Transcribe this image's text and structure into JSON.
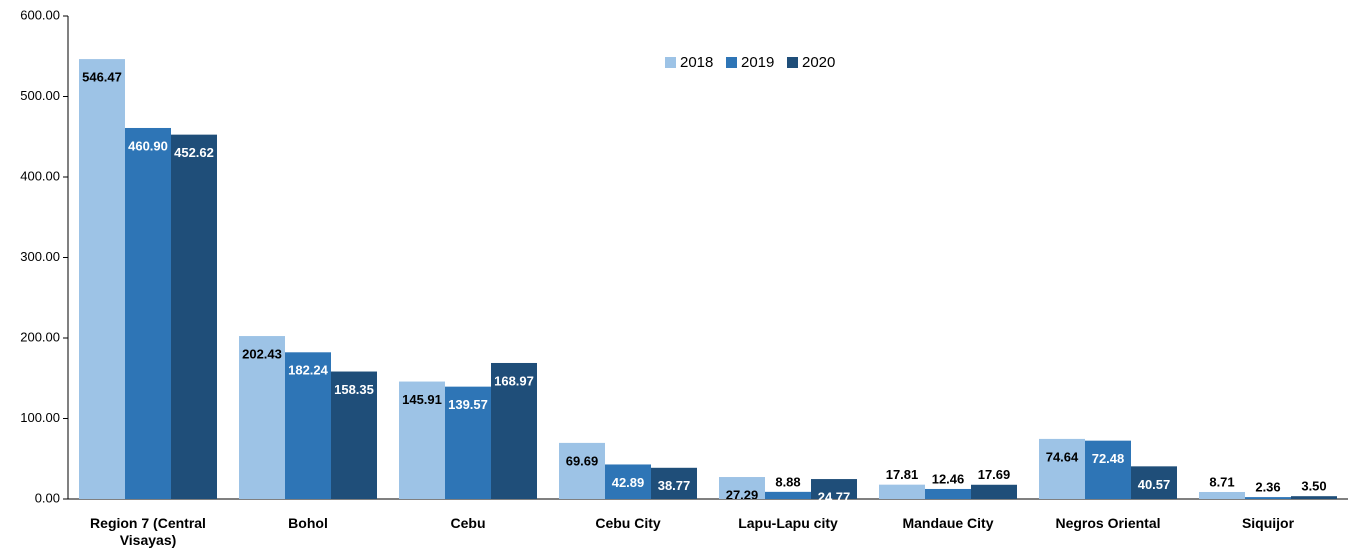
{
  "chart_data": {
    "type": "bar",
    "categories": [
      "Region 7 (Central Visayas)",
      "Bohol",
      "Cebu",
      "Cebu City",
      "Lapu-Lapu city",
      "Mandaue City",
      "Negros Oriental",
      "Siquijor"
    ],
    "series": [
      {
        "name": "2018",
        "color": "#9dc3e6",
        "values": [
          546.47,
          202.43,
          145.91,
          69.69,
          27.29,
          17.81,
          74.64,
          8.71
        ],
        "value_labels": [
          "546.47",
          "202.43",
          "145.91",
          "69.69",
          "27.29",
          "17.81",
          "74.64",
          "8.71"
        ]
      },
      {
        "name": "2019",
        "color": "#2e75b6",
        "values": [
          460.9,
          182.24,
          139.57,
          42.89,
          8.88,
          12.46,
          72.48,
          2.36
        ],
        "value_labels": [
          "460.90",
          "182.24",
          "139.57",
          "42.89",
          "8.88",
          "12.46",
          "72.48",
          "2.36"
        ]
      },
      {
        "name": "2020",
        "color": "#1f4e79",
        "values": [
          452.62,
          158.35,
          168.97,
          38.77,
          24.77,
          17.69,
          40.57,
          3.5
        ],
        "value_labels": [
          "452.62",
          "158.35",
          "168.97",
          "38.77",
          "24.77",
          "17.69",
          "40.57",
          "3.50"
        ]
      }
    ],
    "ylim": [
      0,
      600
    ],
    "yticks": [
      {
        "value": 0,
        "label": "0.00"
      },
      {
        "value": 100,
        "label": "100.00"
      },
      {
        "value": 200,
        "label": "200.00"
      },
      {
        "value": 300,
        "label": "300.00"
      },
      {
        "value": 400,
        "label": "400.00"
      },
      {
        "value": 500,
        "label": "500.00"
      },
      {
        "value": 600,
        "label": "600.00"
      }
    ],
    "grid": false,
    "legend": "top"
  }
}
